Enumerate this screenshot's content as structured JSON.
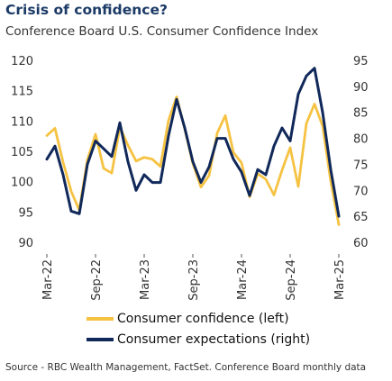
{
  "chart_data": {
    "type": "line",
    "title": "Crisis of confidence?",
    "subtitle": "Conference Board U.S. Consumer Confidence Index",
    "x": [
      "Mar-22",
      "Apr-22",
      "May-22",
      "Jun-22",
      "Jul-22",
      "Aug-22",
      "Sep-22",
      "Oct-22",
      "Nov-22",
      "Dec-22",
      "Jan-23",
      "Feb-23",
      "Mar-23",
      "Apr-23",
      "May-23",
      "Jun-23",
      "Jul-23",
      "Aug-23",
      "Sep-23",
      "Oct-23",
      "Nov-23",
      "Dec-23",
      "Jan-24",
      "Feb-24",
      "Mar-24",
      "Apr-24",
      "May-24",
      "Jun-24",
      "Jul-24",
      "Aug-24",
      "Sep-24",
      "Oct-24",
      "Nov-24",
      "Dec-24",
      "Jan-25",
      "Feb-25",
      "Mar-25"
    ],
    "x_tick_labels": [
      "Mar-22",
      "Sep-22",
      "Mar-23",
      "Sep-23",
      "Mar-24",
      "Sep-24",
      "Mar-25"
    ],
    "series": [
      {
        "name": "Consumer confidence (left)",
        "axis": "left",
        "color": "#f5c242",
        "values": [
          107.6,
          108.8,
          103.2,
          98.4,
          95.3,
          103.6,
          107.8,
          102.2,
          101.4,
          109.0,
          106.0,
          103.4,
          104.0,
          103.7,
          102.5,
          110.1,
          114.0,
          108.7,
          103.0,
          99.1,
          101.0,
          108.0,
          110.9,
          104.8,
          103.1,
          97.5,
          101.3,
          100.4,
          97.8,
          101.9,
          105.6,
          99.2,
          109.6,
          112.8,
          109.2,
          100.1,
          92.9
        ]
      },
      {
        "name": "Consumer expectations (right)",
        "axis": "right",
        "color": "#10285a",
        "values": [
          76.0,
          78.5,
          73.0,
          66.0,
          65.5,
          75.0,
          79.5,
          78.0,
          76.5,
          83.0,
          75.5,
          70.0,
          73.0,
          71.5,
          71.5,
          80.5,
          87.5,
          82.0,
          75.5,
          71.5,
          74.5,
          80.0,
          80.0,
          76.0,
          73.5,
          69.0,
          74.0,
          73.0,
          78.5,
          82.0,
          79.5,
          88.5,
          92.0,
          93.5,
          85.0,
          74.0,
          65.0
        ]
      }
    ],
    "y_left": {
      "ylim": [
        90,
        120
      ],
      "ticks": [
        90,
        95,
        100,
        105,
        110,
        115,
        120
      ]
    },
    "y_right": {
      "ylim": [
        60,
        95
      ],
      "ticks": [
        60,
        65,
        70,
        75,
        80,
        85,
        90,
        95
      ]
    },
    "grid": false,
    "legend_position": "bottom"
  },
  "source": "Source - RBC Wealth Management, FactSet. Conference Board monthly data"
}
